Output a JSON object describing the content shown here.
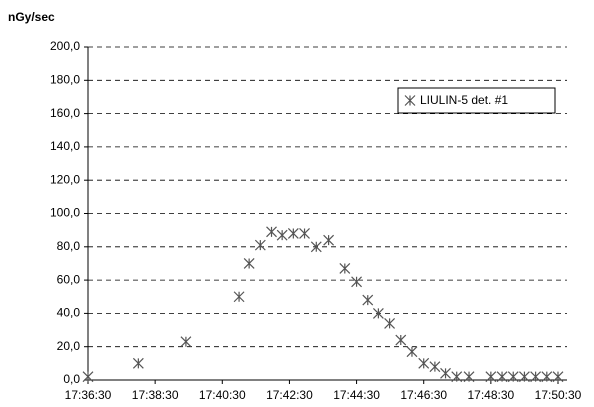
{
  "chart_data": {
    "type": "scatter",
    "y_label": "nGy/sec",
    "x": [
      "17:36:30",
      "17:38:00",
      "17:39:25",
      "17:41:00",
      "17:41:18",
      "17:41:38",
      "17:41:58",
      "17:42:17",
      "17:42:37",
      "17:42:57",
      "17:43:18",
      "17:43:40",
      "17:44:09",
      "17:44:30",
      "17:44:50",
      "17:45:09",
      "17:45:29",
      "17:45:49",
      "17:46:09",
      "17:46:30",
      "17:46:50",
      "17:47:09",
      "17:47:29",
      "17:47:51",
      "17:48:30",
      "17:48:50",
      "17:49:10",
      "17:49:30",
      "17:49:50",
      "17:50:10",
      "17:50:30"
    ],
    "series": [
      {
        "name": "LIULIN-5 det. #1",
        "color": "#555555",
        "values": [
          2,
          10,
          23,
          50,
          70,
          81,
          89,
          87,
          88,
          88,
          80,
          84,
          67,
          59,
          48,
          40,
          34,
          24,
          17,
          10,
          8,
          4,
          2,
          2,
          2,
          2,
          2,
          2,
          2,
          2,
          2
        ]
      }
    ],
    "xlim": [
      "17:36:30",
      "17:50:30"
    ],
    "xticks": [
      "17:36:30",
      "17:38:30",
      "17:40:30",
      "17:42:30",
      "17:44:30",
      "17:46:30",
      "17:48:30",
      "17:50:30"
    ],
    "ylim": [
      0,
      200
    ],
    "yticks": [
      {
        "value": 0,
        "label": "0,0"
      },
      {
        "value": 20,
        "label": "20,0"
      },
      {
        "value": 40,
        "label": "40,0"
      },
      {
        "value": 60,
        "label": "60,0"
      },
      {
        "value": 80,
        "label": "80,0"
      },
      {
        "value": 100,
        "label": "100,0"
      },
      {
        "value": 120,
        "label": "120,0"
      },
      {
        "value": 140,
        "label": "140,0"
      },
      {
        "value": 160,
        "label": "160,0"
      },
      {
        "value": 180,
        "label": "180,0"
      },
      {
        "value": 200,
        "label": "200,0"
      }
    ],
    "grid": true,
    "legend": "upper right"
  }
}
